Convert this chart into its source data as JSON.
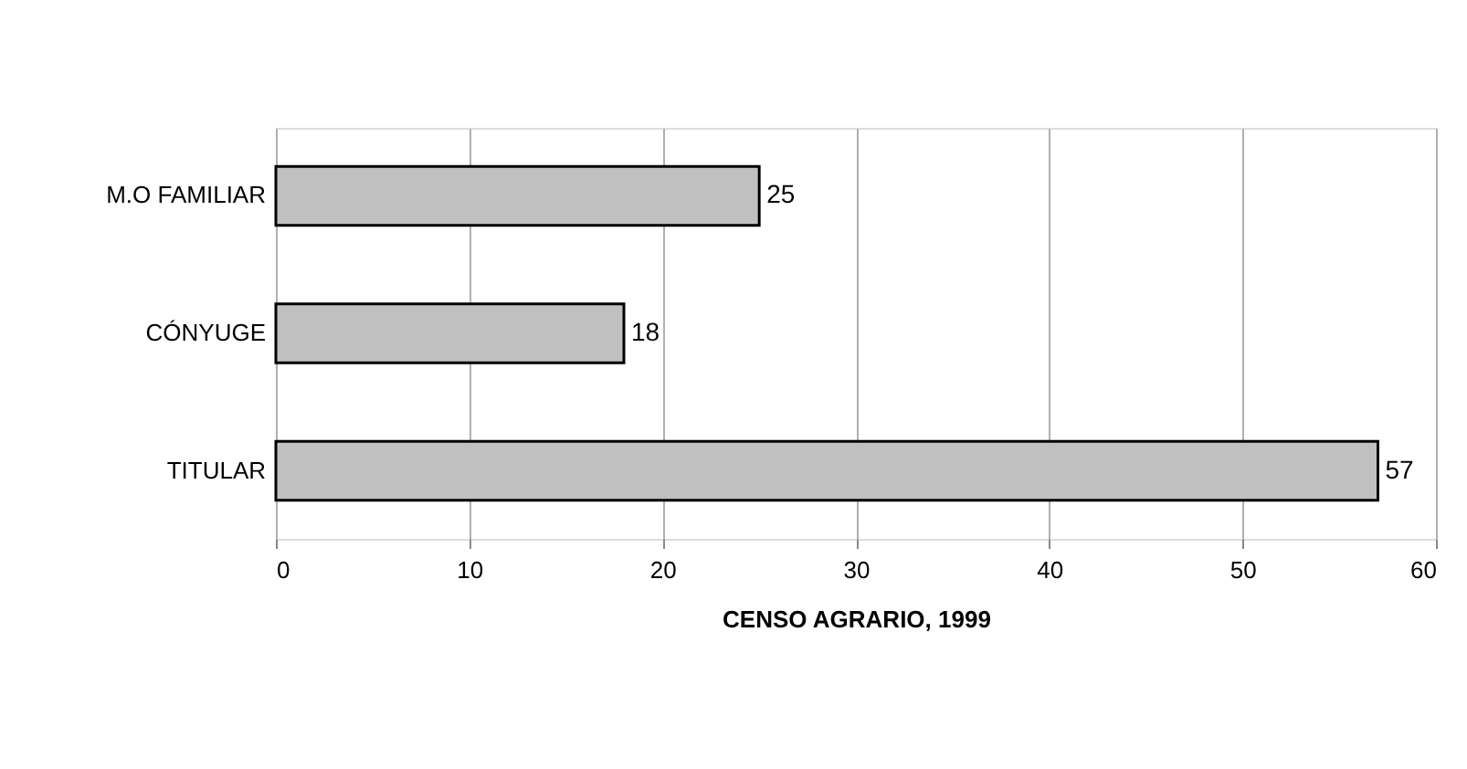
{
  "chart_data": {
    "type": "bar",
    "orientation": "horizontal",
    "categories": [
      "M.O FAMILIAR",
      "CÓNYUGE",
      "TITULAR"
    ],
    "values": [
      25,
      18,
      57
    ],
    "color": "#c0c0c0",
    "xlabel": "CENSO AGRARIO, 1999",
    "xlim": [
      0,
      60
    ],
    "xticks": [
      0,
      10,
      20,
      30,
      40,
      50,
      60
    ],
    "grid": "x",
    "data_labels": true
  }
}
